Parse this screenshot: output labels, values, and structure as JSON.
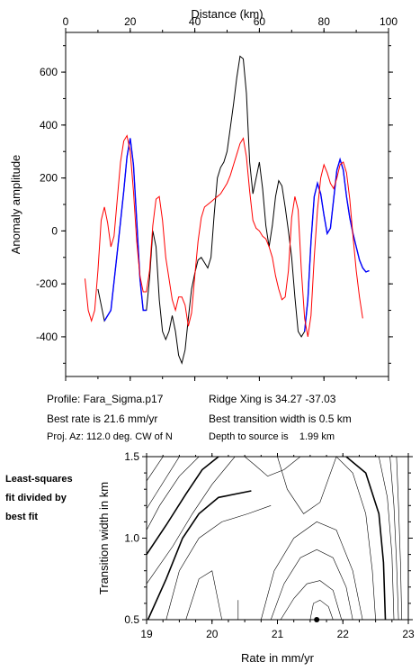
{
  "chart_data": [
    {
      "type": "line",
      "xlabel": "Distance (km)",
      "ylabel": "Anomaly amplitude",
      "xlim": [
        0,
        100
      ],
      "ylim": [
        -550,
        750
      ],
      "x_ticks": [
        0,
        20,
        40,
        60,
        80,
        100
      ],
      "x_tick_labels": [
        "0",
        "20",
        "40",
        "60",
        "80",
        "100"
      ],
      "y_ticks": [
        -400,
        -200,
        0,
        200,
        400,
        600
      ],
      "y_tick_labels": [
        "-400",
        "-200",
        "0",
        "200",
        "400",
        "600"
      ],
      "grid": false,
      "series": [
        {
          "color": "#000000",
          "x": [
            10,
            12,
            14,
            16,
            18,
            19,
            20,
            21,
            22,
            23,
            24,
            25,
            26,
            27,
            28,
            29,
            30,
            31,
            32,
            33,
            34,
            35,
            36,
            37,
            38,
            39,
            40,
            41,
            42,
            43,
            44,
            45,
            46,
            47,
            48,
            49,
            50,
            51,
            52,
            53,
            54,
            55,
            56,
            57,
            58,
            59,
            60,
            61,
            62,
            63,
            64,
            65,
            66,
            67,
            68,
            69,
            70,
            71,
            72,
            73,
            74,
            75,
            76,
            77,
            78,
            79,
            80,
            81,
            82,
            83,
            84,
            85,
            86,
            87,
            88,
            89,
            90,
            91,
            92,
            93,
            94
          ],
          "y": [
            -220,
            -340,
            -300,
            -80,
            150,
            280,
            350,
            250,
            40,
            -180,
            -300,
            -300,
            -180,
            0,
            -60,
            -260,
            -380,
            -410,
            -380,
            -320,
            -380,
            -470,
            -500,
            -450,
            -330,
            -220,
            -160,
            -110,
            -100,
            -120,
            -140,
            -100,
            60,
            200,
            240,
            260,
            300,
            390,
            480,
            580,
            660,
            650,
            520,
            260,
            140,
            200,
            260,
            160,
            20,
            -60,
            20,
            130,
            190,
            170,
            90,
            0,
            -100,
            -250,
            -380,
            -400,
            -380,
            -260,
            -40,
            130,
            180,
            140,
            60,
            -10,
            10,
            120,
            230,
            270,
            230,
            130,
            50,
            -10,
            -60,
            -110,
            -140,
            -155,
            -150
          ]
        },
        {
          "color": "#0000ff",
          "x": [
            12,
            14,
            16,
            18,
            19,
            20,
            21,
            22,
            23,
            24,
            25,
            74,
            75,
            76,
            77,
            78,
            79,
            80,
            81,
            82,
            83,
            84,
            85,
            86,
            87,
            88,
            89,
            90,
            91,
            92,
            93,
            94
          ],
          "y": [
            -340,
            -300,
            -80,
            150,
            280,
            350,
            250,
            40,
            -180,
            -300,
            -300,
            -380,
            -260,
            -40,
            130,
            180,
            140,
            60,
            -10,
            10,
            120,
            230,
            270,
            230,
            130,
            50,
            -10,
            -60,
            -110,
            -140,
            -155,
            -150
          ]
        },
        {
          "color": "#ff0000",
          "x": [
            6,
            7,
            8,
            9,
            10,
            11,
            12,
            13,
            14,
            15,
            16,
            17,
            18,
            19,
            20,
            21,
            22,
            23,
            24,
            25,
            26,
            27,
            28,
            29,
            30,
            31,
            32,
            33,
            34,
            35,
            36,
            37,
            38,
            39,
            40,
            41,
            42,
            43,
            44,
            45,
            46,
            47,
            48,
            49,
            50,
            51,
            52,
            53,
            54,
            55,
            56,
            57,
            58,
            59,
            60,
            61,
            62,
            63,
            64,
            65,
            66,
            67,
            68,
            69,
            70,
            71,
            72,
            73,
            74,
            75,
            76,
            77,
            78,
            79,
            80,
            81,
            82,
            83,
            84,
            85,
            86,
            87,
            88,
            89,
            90,
            91,
            92
          ],
          "y": [
            -180,
            -300,
            -340,
            -300,
            -150,
            40,
            90,
            30,
            -60,
            -20,
            120,
            260,
            340,
            360,
            300,
            150,
            -40,
            -170,
            -230,
            -230,
            -150,
            20,
            120,
            130,
            40,
            -100,
            -180,
            -260,
            -300,
            -250,
            -250,
            -280,
            -360,
            -310,
            -170,
            -40,
            50,
            90,
            100,
            110,
            120,
            130,
            140,
            160,
            180,
            210,
            250,
            290,
            330,
            350,
            280,
            150,
            40,
            10,
            0,
            -20,
            -30,
            -60,
            -100,
            -170,
            -220,
            -260,
            -250,
            -150,
            50,
            130,
            80,
            -150,
            -330,
            -400,
            -320,
            -100,
            80,
            200,
            250,
            220,
            180,
            160,
            200,
            250,
            260,
            220,
            120,
            -20,
            -150,
            -250,
            -330
          ]
        }
      ]
    },
    {
      "type": "contour",
      "xlabel": "Rate in mm/yr",
      "ylabel": "Transition width in km",
      "xlim": [
        19,
        23
      ],
      "ylim": [
        0.5,
        1.5
      ],
      "x_ticks": [
        19,
        20,
        21,
        22,
        23
      ],
      "x_tick_labels": [
        "19",
        "20",
        "21",
        "22",
        "23"
      ],
      "y_ticks": [
        0.5,
        1.0,
        1.5
      ],
      "y_tick_labels": [
        "0.5",
        "1.0",
        "1.5"
      ],
      "best_fit_point": {
        "x": 21.6,
        "y": 0.5
      },
      "contours": [
        {
          "bold": false,
          "x": [
            19.0,
            19.25
          ],
          "y": [
            1.35,
            1.5
          ]
        },
        {
          "bold": false,
          "x": [
            19.0,
            19.5
          ],
          "y": [
            1.18,
            1.5
          ]
        },
        {
          "bold": false,
          "x": [
            19.0,
            19.2,
            19.5,
            19.8
          ],
          "y": [
            1.05,
            1.2,
            1.38,
            1.5
          ]
        },
        {
          "bold": true,
          "x": [
            19.0,
            19.3,
            19.6,
            19.85,
            20.1
          ],
          "y": [
            0.9,
            1.08,
            1.27,
            1.42,
            1.5
          ]
        },
        {
          "bold": false,
          "x": [
            19.0,
            19.4,
            19.7,
            20.0,
            20.35
          ],
          "y": [
            0.72,
            0.95,
            1.15,
            1.33,
            1.5
          ]
        },
        {
          "bold": true,
          "x": [
            19.02,
            19.3,
            19.55,
            19.8,
            20.1,
            20.6
          ],
          "y": [
            0.5,
            0.75,
            1.0,
            1.15,
            1.25,
            1.29
          ]
        },
        {
          "bold": false,
          "x": [
            19.3,
            19.5,
            19.8,
            20.15,
            20.55,
            20.9
          ],
          "y": [
            0.5,
            0.8,
            1.0,
            1.1,
            1.15,
            1.2
          ]
        },
        {
          "bold": false,
          "x": [
            19.6,
            19.8,
            20.0,
            20.15
          ],
          "y": [
            0.5,
            0.75,
            0.8,
            0.5
          ]
        },
        {
          "bold": false,
          "x": [
            20.5,
            20.65,
            20.85,
            21.1,
            21.35
          ],
          "y": [
            1.5,
            1.45,
            1.38,
            1.42,
            1.5
          ]
        },
        {
          "bold": false,
          "x": [
            21.0,
            21.15,
            21.4,
            21.65,
            21.9
          ],
          "y": [
            1.5,
            1.3,
            1.15,
            1.22,
            1.5
          ]
        },
        {
          "bold": false,
          "x": [
            20.75,
            20.95,
            21.25,
            21.6,
            21.9,
            22.15,
            22.3
          ],
          "y": [
            0.5,
            0.8,
            1.0,
            1.1,
            1.05,
            0.8,
            0.5
          ]
        },
        {
          "bold": false,
          "x": [
            20.9,
            21.1,
            21.35,
            21.6,
            21.85,
            22.05,
            22.15
          ],
          "y": [
            0.5,
            0.72,
            0.88,
            0.93,
            0.88,
            0.7,
            0.5
          ]
        },
        {
          "bold": false,
          "x": [
            21.05,
            21.25,
            21.45,
            21.65,
            21.85,
            21.98
          ],
          "y": [
            0.5,
            0.63,
            0.72,
            0.74,
            0.68,
            0.5
          ]
        },
        {
          "bold": false,
          "x": [
            21.5,
            21.55,
            21.65,
            21.78,
            21.85
          ],
          "y": [
            0.5,
            0.6,
            0.62,
            0.58,
            0.5
          ]
        },
        {
          "bold": false,
          "x": [
            21.9,
            22.15,
            22.35,
            22.45,
            22.5
          ],
          "y": [
            1.5,
            1.4,
            1.15,
            0.8,
            0.5
          ]
        },
        {
          "bold": true,
          "x": [
            22.05,
            22.35,
            22.55,
            22.62,
            22.65
          ],
          "y": [
            1.5,
            1.4,
            1.15,
            0.85,
            0.5
          ]
        },
        {
          "bold": false,
          "x": [
            22.55,
            22.68,
            22.75,
            22.78
          ],
          "y": [
            1.5,
            1.25,
            0.9,
            0.5
          ]
        },
        {
          "bold": false,
          "x": [
            22.72,
            22.78,
            22.82,
            22.85
          ],
          "y": [
            1.5,
            1.2,
            0.85,
            0.5
          ]
        },
        {
          "bold": false,
          "x": [
            22.82,
            22.85,
            22.88,
            22.9
          ],
          "y": [
            1.5,
            1.2,
            0.85,
            0.5
          ]
        },
        {
          "bold": false,
          "x": [
            20.4,
            20.4
          ],
          "y": [
            0.5,
            0.62
          ]
        }
      ]
    }
  ],
  "info": {
    "profile": "Profile: Fara_Sigma.p17",
    "ridge_xing": "Ridge Xing is 34.27 -37.03",
    "best_rate": "Best rate is 21.6 mm/yr",
    "best_width": "Best transition width is 0.5 km",
    "proj_az": "Proj. Az: 112.0 deg. CW of N",
    "depth": "Depth to source is    1.99 km"
  },
  "side_label": [
    "Least-squares",
    "fit divided by",
    "best fit"
  ]
}
